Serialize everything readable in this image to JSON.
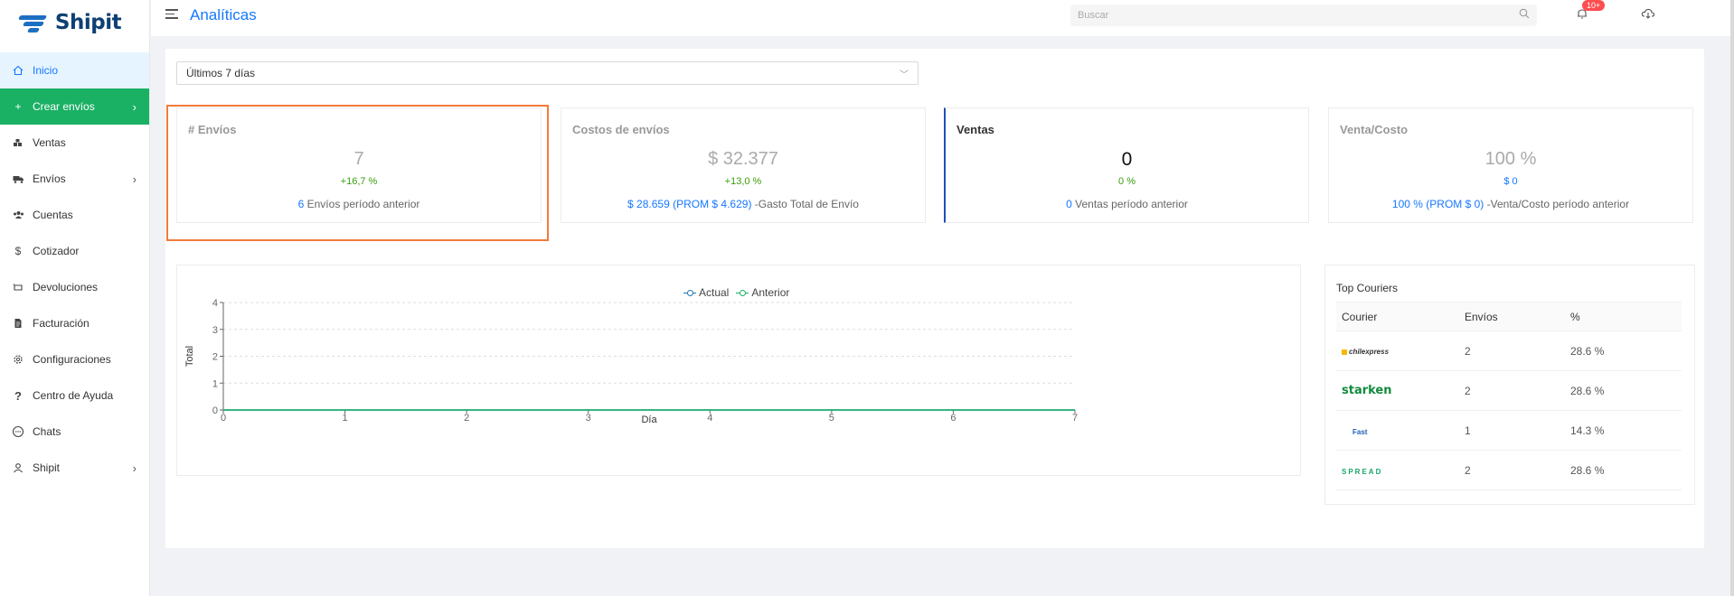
{
  "brand": {
    "name": "Shipit"
  },
  "sidebar": {
    "items": [
      {
        "label": "Inicio",
        "icon": "home-icon"
      },
      {
        "label": "Crear envíos",
        "icon": "plus-icon"
      },
      {
        "label": "Ventas",
        "icon": "sales-icon"
      },
      {
        "label": "Envíos",
        "icon": "truck-icon"
      },
      {
        "label": "Cuentas",
        "icon": "users-icon"
      },
      {
        "label": "Cotizador",
        "icon": "dollar-icon"
      },
      {
        "label": "Devoluciones",
        "icon": "return-icon"
      },
      {
        "label": "Facturación",
        "icon": "document-icon"
      },
      {
        "label": "Configuraciones",
        "icon": "gear-icon"
      },
      {
        "label": "Centro de Ayuda",
        "icon": "question-icon"
      },
      {
        "label": "Chats",
        "icon": "chat-icon"
      },
      {
        "label": "Shipit",
        "icon": "user-icon"
      }
    ]
  },
  "header": {
    "title": "Analíticas",
    "search_placeholder": "Buscar",
    "notifications_badge": "10+"
  },
  "filter": {
    "period": "Últimos 7 días"
  },
  "cards": {
    "envios": {
      "title": "# Envíos",
      "value": "7",
      "percent": "+16,7 %",
      "prev_value": "6",
      "prev_label": " Envíos período anterior"
    },
    "costos": {
      "title": "Costos de envíos",
      "value": "$ 32.377",
      "percent": "+13,0 %",
      "prev_value": "$ 28.659 (PROM $ 4.629)",
      "prev_label": " -Gasto Total de Envío"
    },
    "ventas": {
      "title": "Ventas",
      "value": "0",
      "percent": "0 %",
      "prev_value": "0",
      "prev_label": " Ventas período anterior"
    },
    "venta_costo": {
      "title": "Venta/Costo",
      "value": "100 %",
      "percent": "$ 0",
      "prev_value": "100 % (PROM $ 0)",
      "prev_label": " -Venta/Costo período anterior"
    }
  },
  "chart_data": {
    "type": "line",
    "x": [
      0,
      1,
      2,
      3,
      4,
      5,
      6,
      7
    ],
    "series": [
      {
        "name": "Actual",
        "values": [
          0,
          0,
          0,
          0,
          0,
          0,
          0,
          0
        ],
        "color": "#1f77b4"
      },
      {
        "name": "Anterior",
        "values": [
          0,
          0,
          0,
          0,
          0,
          0,
          0,
          0
        ],
        "color": "#1ab164"
      }
    ],
    "xlabel": "Día",
    "ylabel": "Total",
    "xlim": [
      0,
      7
    ],
    "ylim": [
      0,
      4
    ],
    "yticks": [
      0,
      1,
      2,
      3,
      4
    ],
    "xticks": [
      0,
      1,
      2,
      3,
      4,
      5,
      6,
      7
    ],
    "grid": true,
    "legend": "top-center"
  },
  "couriers": {
    "title": "Top Couriers",
    "columns": [
      "Courier",
      "Envíos",
      "%"
    ],
    "rows": [
      {
        "logo": "chilexpress",
        "envios": "2",
        "pct": "28.6 %"
      },
      {
        "logo": "starken",
        "envios": "2",
        "pct": "28.6 %"
      },
      {
        "logo": "Fast",
        "envios": "1",
        "pct": "14.3 %"
      },
      {
        "logo": "SPREAD",
        "envios": "2",
        "pct": "28.6 %"
      }
    ]
  }
}
